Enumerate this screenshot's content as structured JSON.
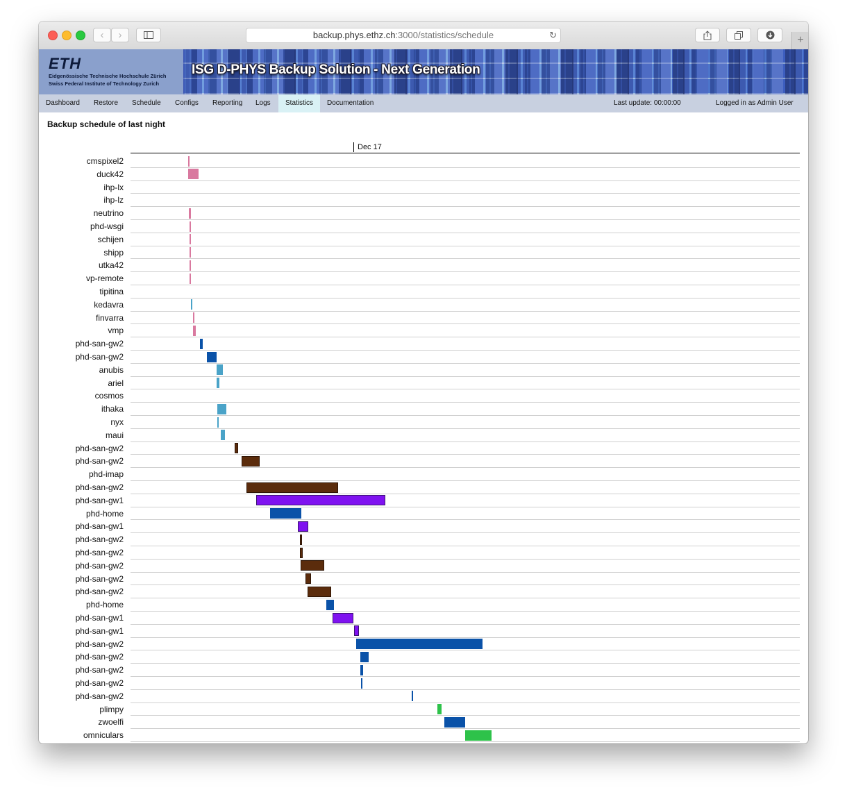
{
  "browser": {
    "url_host": "backup.phys.ethz.ch",
    "url_path": ":3000/statistics/schedule"
  },
  "banner": {
    "logo": "ETH",
    "institution_de": "Eidgenössische Technische Hochschule Zürich",
    "institution_en": "Swiss Federal Institute of Technology Zurich",
    "title": "ISG D-PHYS Backup Solution - Next Generation"
  },
  "menu": {
    "items": [
      {
        "label": "Dashboard",
        "active": false
      },
      {
        "label": "Restore",
        "active": false
      },
      {
        "label": "Schedule",
        "active": false
      },
      {
        "label": "Configs",
        "active": false
      },
      {
        "label": "Reporting",
        "active": false
      },
      {
        "label": "Logs",
        "active": false
      },
      {
        "label": "Statistics",
        "active": true
      },
      {
        "label": "Documentation",
        "active": false
      }
    ],
    "last_update": "Last update: 00:00:00",
    "logged_in": "Logged in as Admin User"
  },
  "page": {
    "title": "Backup schedule of last night"
  },
  "chart_data": {
    "type": "timeline",
    "date_label": "Dec 17",
    "colors": {
      "pink": "#d9799f",
      "blue": "#0a52a8",
      "teal": "#4aa3c8",
      "brown": "#5b2c0c",
      "purple": "#7f12f0",
      "green": "#2ec24a"
    },
    "rows": [
      {
        "name": "cmspixel2",
        "start": 83.0,
        "end": 85.0,
        "color": "pink"
      },
      {
        "name": "duck42",
        "start": 83.0,
        "end": 98.0,
        "color": "pink"
      },
      {
        "name": "ihp-lx",
        "start": null,
        "end": null,
        "color": null
      },
      {
        "name": "ihp-lz",
        "start": null,
        "end": null,
        "color": null
      },
      {
        "name": "neutrino",
        "start": 84.0,
        "end": 86.5,
        "color": "pink"
      },
      {
        "name": "phd-wsgi",
        "start": 85.0,
        "end": 87.0,
        "color": "pink"
      },
      {
        "name": "schijen",
        "start": 85.0,
        "end": 87.0,
        "color": "pink"
      },
      {
        "name": "shipp",
        "start": 85.0,
        "end": 87.0,
        "color": "pink"
      },
      {
        "name": "utka42",
        "start": 85.0,
        "end": 87.0,
        "color": "pink"
      },
      {
        "name": "vp-remote",
        "start": 85.0,
        "end": 87.0,
        "color": "pink"
      },
      {
        "name": "tipitina",
        "start": null,
        "end": null,
        "color": null
      },
      {
        "name": "kedavra",
        "start": 87.0,
        "end": 89.0,
        "color": "teal"
      },
      {
        "name": "finvarra",
        "start": 90.0,
        "end": 92.0,
        "color": "pink"
      },
      {
        "name": "vmp",
        "start": 90.0,
        "end": 94.0,
        "color": "pink"
      },
      {
        "name": "phd-san-gw2",
        "start": 100.0,
        "end": 104.0,
        "color": "blue"
      },
      {
        "name": "phd-san-gw2",
        "start": 110.0,
        "end": 124.0,
        "color": "blue"
      },
      {
        "name": "anubis",
        "start": 124.0,
        "end": 133.0,
        "color": "teal"
      },
      {
        "name": "ariel",
        "start": 124.0,
        "end": 128.0,
        "color": "teal"
      },
      {
        "name": "cosmos",
        "start": null,
        "end": null,
        "color": null
      },
      {
        "name": "ithaka",
        "start": 125.0,
        "end": 138.0,
        "color": "teal"
      },
      {
        "name": "nyx",
        "start": 125.0,
        "end": 127.0,
        "color": "teal"
      },
      {
        "name": "maui",
        "start": 130.0,
        "end": 136.0,
        "color": "teal"
      },
      {
        "name": "phd-san-gw2",
        "start": 150.0,
        "end": 155.0,
        "color": "brown"
      },
      {
        "name": "phd-san-gw2",
        "start": 160.0,
        "end": 186.0,
        "color": "brown"
      },
      {
        "name": "phd-imap",
        "start": null,
        "end": null,
        "color": null
      },
      {
        "name": "phd-san-gw2",
        "start": 167.0,
        "end": 299.0,
        "color": "brown"
      },
      {
        "name": "phd-san-gw1",
        "start": 181.0,
        "end": 367.0,
        "color": "purple"
      },
      {
        "name": "phd-home",
        "start": 201.0,
        "end": 246.0,
        "color": "blue"
      },
      {
        "name": "phd-san-gw1",
        "start": 241.0,
        "end": 256.0,
        "color": "purple"
      },
      {
        "name": "phd-san-gw2",
        "start": 244.0,
        "end": 247.0,
        "color": "brown"
      },
      {
        "name": "phd-san-gw2",
        "start": 244.0,
        "end": 248.0,
        "color": "brown"
      },
      {
        "name": "phd-san-gw2",
        "start": 245.0,
        "end": 279.0,
        "color": "brown"
      },
      {
        "name": "phd-san-gw2",
        "start": 252.0,
        "end": 260.0,
        "color": "brown"
      },
      {
        "name": "phd-san-gw2",
        "start": 255.0,
        "end": 289.0,
        "color": "brown"
      },
      {
        "name": "phd-home",
        "start": 282.0,
        "end": 293.0,
        "color": "blue"
      },
      {
        "name": "phd-san-gw1",
        "start": 291.0,
        "end": 321.0,
        "color": "purple"
      },
      {
        "name": "phd-san-gw1",
        "start": 322.0,
        "end": 329.0,
        "color": "purple"
      },
      {
        "name": "phd-san-gw2",
        "start": 325.0,
        "end": 507.0,
        "color": "blue"
      },
      {
        "name": "phd-san-gw2",
        "start": 331.0,
        "end": 343.0,
        "color": "blue"
      },
      {
        "name": "phd-san-gw2",
        "start": 331.0,
        "end": 335.0,
        "color": "blue"
      },
      {
        "name": "phd-san-gw2",
        "start": 332.0,
        "end": 334.0,
        "color": "blue"
      },
      {
        "name": "phd-san-gw2",
        "start": 405.0,
        "end": 407.0,
        "color": "blue"
      },
      {
        "name": "plimpy",
        "start": 442.0,
        "end": 448.0,
        "color": "green"
      },
      {
        "name": "zwoelfi",
        "start": 452.0,
        "end": 482.0,
        "color": "blue"
      },
      {
        "name": "omniculars",
        "start": 482.0,
        "end": 520.0,
        "color": "green"
      }
    ]
  }
}
